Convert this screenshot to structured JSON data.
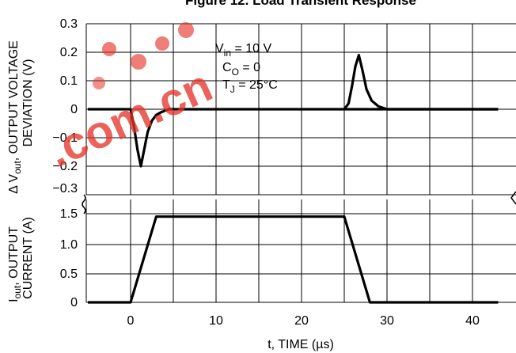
{
  "chart_data": {
    "type": "line",
    "title": "Figure 12. Load Transient Response",
    "xlabel": "t, TIME (µs)",
    "x_ticks": [
      "0",
      "10",
      "20",
      "30",
      "40"
    ],
    "xlim": [
      -5,
      43
    ],
    "panels": [
      {
        "name": "voltage",
        "ylabel_top": "Δ V",
        "ylabel_sub": "out",
        "ylabel_rest": ", OUTPUT VOLTAGE",
        "ylabel_line2": "DEVIATION (V)",
        "ylim": [
          -0.3,
          0.3
        ],
        "y_ticks": [
          "0.3",
          "0.2",
          "0.1",
          "0",
          "−0.1",
          "−0.2",
          "−0.3"
        ],
        "series": [
          {
            "x": [
              -5,
              0,
              0.4,
              0.8,
              1.2,
              1.6,
              2.0,
              2.5,
              3.0,
              3.6,
              4.5,
              43
            ],
            "y": [
              0,
              0,
              -0.06,
              -0.14,
              -0.2,
              -0.14,
              -0.08,
              -0.04,
              -0.02,
              -0.01,
              0,
              0
            ]
          },
          {
            "x": [
              25,
              25.5,
              25.9,
              26.3,
              26.7,
              27.1,
              27.6,
              28.2,
              29.0,
              30.0,
              43
            ],
            "y": [
              0,
              0.02,
              0.08,
              0.15,
              0.19,
              0.14,
              0.07,
              0.03,
              0.01,
              0,
              0
            ]
          }
        ]
      },
      {
        "name": "current",
        "ylabel_top": "I",
        "ylabel_sub": "out",
        "ylabel_rest": ", OUTPUT",
        "ylabel_line2": "CURRENT (A)",
        "ylim": [
          0,
          1.5
        ],
        "y_ticks": [
          "1.5",
          "1.0",
          "0.5",
          "0"
        ],
        "series": [
          {
            "x": [
              -5,
              0,
              3,
              25,
              28,
              43
            ],
            "y": [
              0,
              0,
              1.45,
              1.45,
              0,
              0
            ]
          }
        ]
      }
    ],
    "annotations": {
      "vin_main": "V",
      "vin_sub": "in",
      "vin_rest": " = 10 V",
      "co_main": "C",
      "co_sub": "O",
      "co_rest": " = 0",
      "tj_main": "T",
      "tj_sub": "J",
      "tj_rest": " = 25°C"
    },
    "watermark": ".com.cn"
  }
}
